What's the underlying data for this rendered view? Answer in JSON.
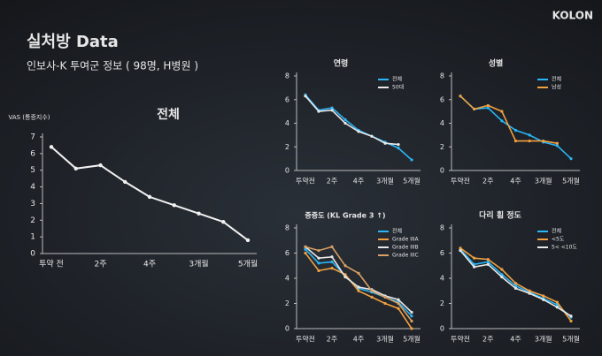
{
  "slide": {
    "logo": "KOLON",
    "title": "실처방 Data",
    "subtitle": "인보사-K 투여군 정보 ( 98명, H병원 )"
  },
  "chart_data": [
    {
      "type": "line",
      "title": "전체",
      "ylabel": "VAS (통증지수)",
      "categories": [
        "투약 전",
        null,
        "2주",
        null,
        "4주",
        null,
        "3개월",
        null,
        "5개월"
      ],
      "values": [
        6.4,
        5.1,
        5.3,
        4.3,
        3.4,
        2.9,
        2.4,
        1.9,
        0.8
      ],
      "color": "#f2f2f2",
      "ylim": [
        0,
        7
      ],
      "yticks": [
        0,
        1,
        2,
        3,
        4,
        5,
        6,
        7
      ]
    },
    {
      "type": "line",
      "title": "연령",
      "categories": [
        "투약전",
        null,
        "2주",
        null,
        "4주",
        null,
        "3개월",
        null,
        "5개월"
      ],
      "series": [
        {
          "name": "전체",
          "color": "#29b6f6",
          "values": [
            6.4,
            5.1,
            5.3,
            4.3,
            3.4,
            2.9,
            2.4,
            1.9,
            0.9
          ]
        },
        {
          "name": "50대",
          "color": "#e8e8e8",
          "values": [
            6.3,
            5.0,
            5.1,
            4.0,
            3.3,
            2.9,
            2.3,
            2.2,
            null
          ]
        }
      ],
      "ylim": [
        0,
        8
      ],
      "yticks": [
        0,
        2,
        4,
        6,
        8
      ]
    },
    {
      "type": "line",
      "title": "성별",
      "categories": [
        "투약전",
        null,
        "2주",
        null,
        "4주",
        null,
        "3개월",
        null,
        "5개월"
      ],
      "series": [
        {
          "name": "전체",
          "color": "#29b6f6",
          "values": [
            6.3,
            5.2,
            5.3,
            4.2,
            3.4,
            3.0,
            2.4,
            2.1,
            1.0
          ]
        },
        {
          "name": "남성",
          "color": "#f0a040",
          "values": [
            6.3,
            5.2,
            5.5,
            5.0,
            2.5,
            2.5,
            2.5,
            2.3,
            null
          ]
        }
      ],
      "ylim": [
        0,
        8
      ],
      "yticks": [
        0,
        2,
        4,
        6,
        8
      ]
    },
    {
      "type": "line",
      "title": "중증도 (KL Grade 3 ↑)",
      "categories": [
        "투약전",
        null,
        "2주",
        null,
        "4주",
        null,
        "3개월",
        null,
        "5개월"
      ],
      "series": [
        {
          "name": "전체",
          "color": "#29b6f6",
          "values": [
            6.3,
            5.2,
            5.3,
            4.2,
            3.2,
            2.9,
            2.5,
            2.1,
            1.0
          ]
        },
        {
          "name": "Grade IIIA",
          "color": "#f0a040",
          "values": [
            6.0,
            4.6,
            4.8,
            4.3,
            3.0,
            2.5,
            2.0,
            1.6,
            0.0
          ]
        },
        {
          "name": "Grade IIIB",
          "color": "#e8e8e8",
          "values": [
            6.5,
            5.6,
            5.7,
            4.1,
            3.3,
            3.1,
            2.6,
            2.3,
            1.3
          ]
        },
        {
          "name": "Grade IIIC",
          "color": "#d9a066",
          "values": [
            6.5,
            6.2,
            6.5,
            5.0,
            4.4,
            3.0,
            2.5,
            2.0,
            0.6
          ]
        }
      ],
      "ylim": [
        0,
        8
      ],
      "yticks": [
        0,
        2,
        4,
        6,
        8
      ]
    },
    {
      "type": "line",
      "title": "다리 휨 정도",
      "categories": [
        "투약전",
        null,
        "2주",
        null,
        "4주",
        null,
        "3개월",
        null,
        "5개월"
      ],
      "series": [
        {
          "name": "전체",
          "color": "#29b6f6",
          "values": [
            6.3,
            5.1,
            5.3,
            4.3,
            3.4,
            2.9,
            2.4,
            1.9,
            0.9
          ]
        },
        {
          "name": "<5도",
          "color": "#f0a040",
          "values": [
            6.4,
            5.6,
            5.5,
            4.7,
            3.6,
            3.0,
            2.6,
            2.1,
            0.6
          ]
        },
        {
          "name": "5< <10도",
          "color": "#e8e8e8",
          "values": [
            6.2,
            4.9,
            5.1,
            4.1,
            3.2,
            2.8,
            2.3,
            1.7,
            1.0
          ]
        }
      ],
      "ylim": [
        0,
        8
      ],
      "yticks": [
        0,
        2,
        4,
        6,
        8
      ]
    }
  ]
}
